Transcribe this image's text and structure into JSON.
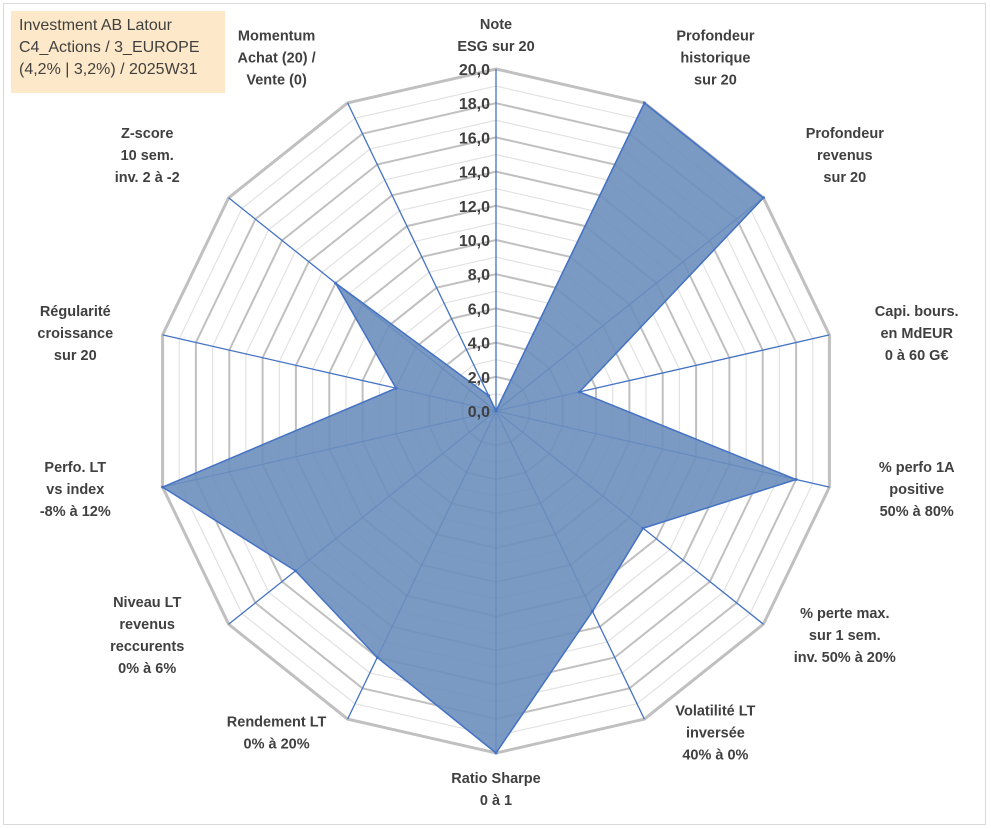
{
  "info": {
    "line1": "Investment AB Latour",
    "line2": "C4_Actions / 3_EUROPE",
    "line3": "(4,2% | 3,2%) / 2025W31"
  },
  "colors": {
    "fill": "#6b8fbc",
    "stroke": "#4472c4",
    "grid": "#c0c0c0",
    "spoke": "#4472c4"
  },
  "chart_data": {
    "type": "radar",
    "title": "",
    "rlim": [
      0,
      20
    ],
    "grid": true,
    "ticks": [
      "0,0",
      "2,0",
      "4,0",
      "6,0",
      "8,0",
      "10,0",
      "12,0",
      "14,0",
      "16,0",
      "18,0",
      "20,0"
    ],
    "axes": [
      {
        "label": [
          "Note",
          "ESG sur 20"
        ],
        "value": 0
      },
      {
        "label": [
          "Profondeur",
          "historique",
          "sur 20"
        ],
        "value": 20
      },
      {
        "label": [
          "Profondeur",
          "revenus",
          "sur 20"
        ],
        "value": 20
      },
      {
        "label": [
          "Capi. bours.",
          "en MdEUR",
          "0 à 60 G€"
        ],
        "value": 5
      },
      {
        "label": [
          "% perfo 1A",
          "positive",
          "50% à 80%"
        ],
        "value": 18
      },
      {
        "label": [
          "% perte max.",
          "sur 1 sem.",
          "inv. 50% à 20%"
        ],
        "value": 11
      },
      {
        "label": [
          "Volatilité LT",
          "inversée",
          "40% à 0%"
        ],
        "value": 13
      },
      {
        "label": [
          "Ratio Sharpe",
          "0 à 1"
        ],
        "value": 20
      },
      {
        "label": [
          "Rendement LT",
          "0% à 20%"
        ],
        "value": 16
      },
      {
        "label": [
          "Niveau LT",
          "revenus",
          "reccurents",
          "0% à 6%"
        ],
        "value": 15
      },
      {
        "label": [
          "Perfo. LT",
          "vs index",
          "-8% à 12%"
        ],
        "value": 20
      },
      {
        "label": [
          "Régularité",
          "croissance",
          "sur 20"
        ],
        "value": 6
      },
      {
        "label": [
          "Z-score",
          "10 sem.",
          "inv. 2 à -2"
        ],
        "value": 12
      },
      {
        "label": [
          "Momentum",
          "Achat (20) /",
          "Vente (0)"
        ],
        "value": 1
      }
    ]
  }
}
